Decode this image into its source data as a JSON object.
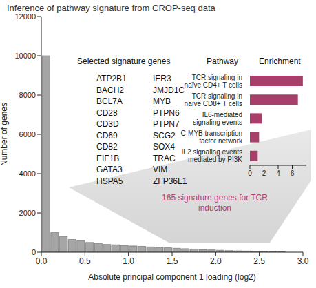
{
  "chart_data": [
    {
      "type": "histogram",
      "title": "Inference of pathway signature from CROP-seq data",
      "x_label": "Absolute principal component 1 loading (log2)",
      "y_label": "Number of genes",
      "bins": [
        0,
        0.1,
        0.2,
        0.3,
        0.4,
        0.5,
        0.6,
        0.7,
        0.8,
        0.9,
        1.0,
        1.1,
        1.2,
        1.3,
        1.4,
        1.5,
        1.6,
        1.7,
        1.8,
        1.9,
        2.0,
        2.1,
        2.2,
        2.3,
        2.4,
        2.5,
        2.6,
        2.7,
        2.8
      ],
      "counts": [
        10000,
        1000,
        800,
        650,
        580,
        500,
        450,
        400,
        380,
        350,
        320,
        300,
        270,
        250,
        230,
        200,
        180,
        160,
        140,
        120,
        100,
        80,
        70,
        60,
        50,
        40,
        30,
        20
      ],
      "color": "#a6a6a6",
      "xlim": [
        0,
        3
      ],
      "xticks": [
        {
          "value": 0,
          "label": "0.0"
        },
        0.5,
        {
          "value": 1,
          "label": "1.0"
        },
        1.5,
        {
          "value": 2,
          "label": "2.0"
        },
        2.5,
        {
          "value": 3,
          "label": "3.0"
        }
      ],
      "ylim": [
        0,
        12000
      ],
      "yticks": [
        0,
        2000,
        4000,
        6000,
        8000,
        10000,
        12000
      ],
      "annotations": [
        "165 signature genes for TCR induction"
      ],
      "gene_list_title": "Selected signature genes",
      "genes": [
        "ATP2B1",
        "BACH2",
        "BCL7A",
        "CD28",
        "CD3D",
        "CD69",
        "CD82",
        "EIF1B",
        "GATA3",
        "HSPA5",
        "IER3",
        "JMJD1C",
        "MYB",
        "PTPN6",
        "PTPN7",
        "SCG2",
        "SOX4",
        "TRAC",
        "VIM",
        "ZFP36L1"
      ]
    },
    {
      "type": "bar",
      "orientation": "horizontal",
      "y_label": "Pathway",
      "x_label": "Enrichment",
      "categories": [
        "TCR signaling in naïve CD4+ T cells",
        "TCR signaling in naïve CD8+ T cells",
        "IL6-mediated signaling events",
        "C-MYB transcription factor network",
        "IL2 signaling events mediated by PI3K"
      ],
      "values": [
        7.5,
        6.8,
        1.7,
        1.3,
        1.1
      ],
      "color": "#a83f6a",
      "xlim": [
        0,
        8
      ],
      "xticks": [
        0,
        2,
        4,
        6
      ]
    }
  ]
}
